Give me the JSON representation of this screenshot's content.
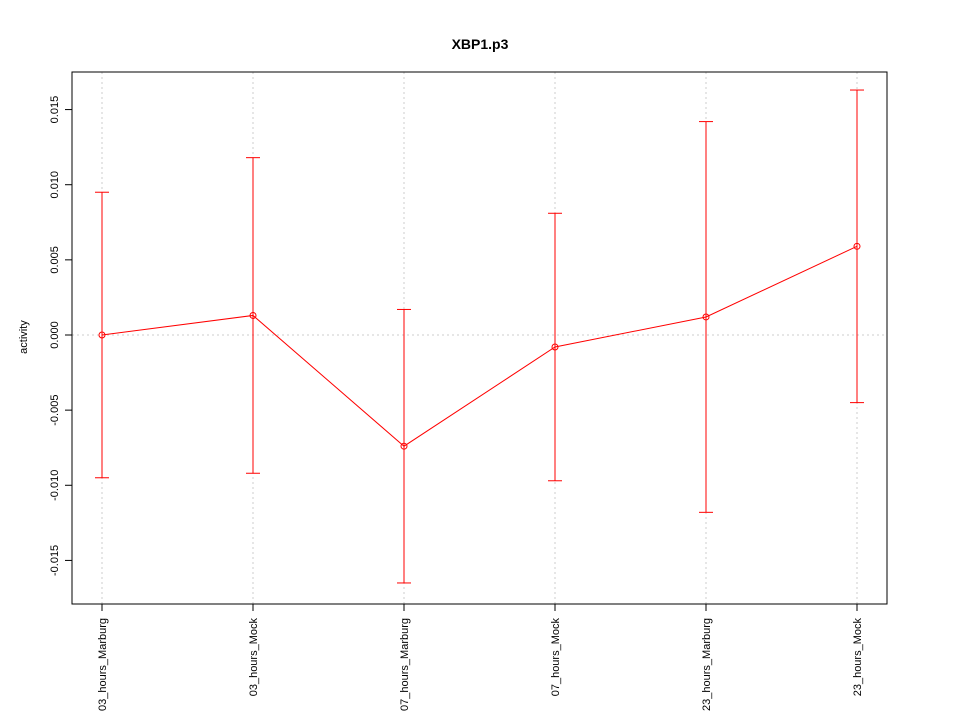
{
  "chart_data": {
    "type": "line",
    "title": "XBP1.p3",
    "y_label": "activity",
    "categories": [
      "03_hours_Marburg",
      "03_hours_Mock",
      "07_hours_Marburg",
      "07_hours_Mock",
      "23_hours_Marburg",
      "23_hours_Mock"
    ],
    "series": [
      {
        "color": "#ff0000",
        "values": [
          0.0,
          0.0013,
          -0.0074,
          -0.0008,
          0.0012,
          0.0059
        ],
        "errors": [
          0.0095,
          0.0105,
          0.0091,
          0.0089,
          0.013,
          0.0104
        ]
      }
    ],
    "ylim": [
      -0.0179,
      0.0175
    ],
    "yticks": [
      {
        "value": -0.015,
        "label": "-0.015"
      },
      {
        "value": -0.01,
        "label": "-0.010"
      },
      {
        "value": -0.005,
        "label": "-0.005"
      },
      {
        "value": 0,
        "label": "0.000"
      },
      {
        "value": 0.005,
        "label": "0.005"
      },
      {
        "value": 0.01,
        "label": "0.010"
      },
      {
        "value": 0.015,
        "label": "0.015"
      }
    ],
    "grid": true,
    "hline": 0
  }
}
